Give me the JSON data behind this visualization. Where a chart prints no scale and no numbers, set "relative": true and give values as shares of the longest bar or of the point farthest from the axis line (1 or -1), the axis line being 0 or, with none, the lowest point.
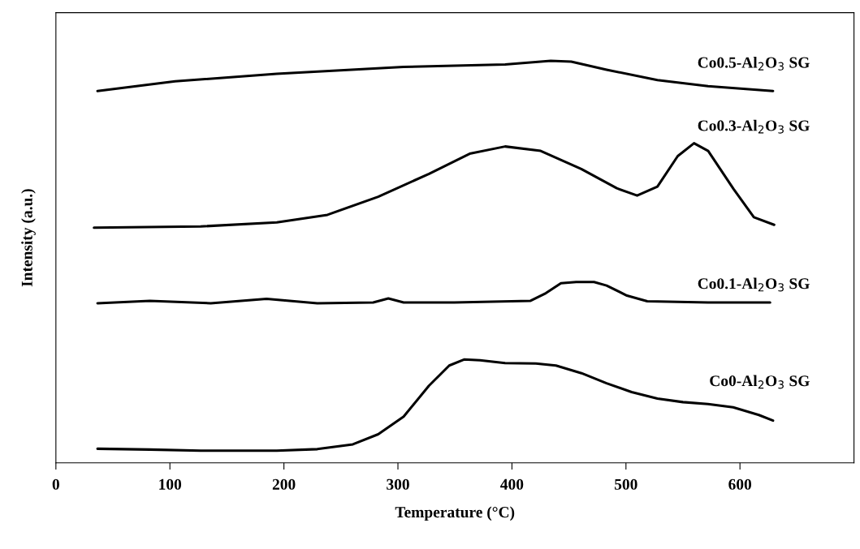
{
  "chart_data": {
    "type": "line",
    "relative": true,
    "xlabel": "Temperature (°C)",
    "ylabel": "Intensity (a.u.)",
    "xlim": [
      0,
      700
    ],
    "xticks": [
      0,
      100,
      200,
      300,
      400,
      500,
      600
    ],
    "grid": false,
    "legend": false,
    "marker": "none",
    "line_style": "solid",
    "series": [
      {
        "name": "Co0.5-Al$_{2}$O$_{3}$ SG",
        "color": "#000000",
        "x": [
          36.5,
          104.6,
          193.7,
          305,
          394,
          434,
          452,
          483,
          527.6,
          572,
          629
        ],
        "values": [
          0.925,
          0.949,
          0.968,
          0.985,
          0.991,
          1.0,
          0.998,
          0.978,
          0.952,
          0.937,
          0.925
        ]
      },
      {
        "name": "Co0.3-Al$_{2}$O$_{3}$ SG",
        "color": "#000000",
        "x": [
          33.4,
          126.9,
          193.7,
          238.2,
          282.7,
          327.3,
          362.9,
          394,
          425.2,
          460.8,
          492,
          509.8,
          527.6,
          545.4,
          559.7,
          572.1,
          594.4,
          612.2,
          630
        ],
        "values": [
          0.585,
          0.588,
          0.598,
          0.617,
          0.662,
          0.719,
          0.769,
          0.787,
          0.776,
          0.731,
          0.683,
          0.665,
          0.687,
          0.763,
          0.795,
          0.776,
          0.681,
          0.611,
          0.592
        ]
      },
      {
        "name": "Co0.1-Al$_{2}$O$_{3}$ SG",
        "color": "#000000",
        "x": [
          36.5,
          82.4,
          135.8,
          184.8,
          229.3,
          278.3,
          291.6,
          305,
          349.5,
          416.3,
          429.7,
          443,
          456.4,
          472,
          483,
          500.9,
          518.7,
          572,
          626.4
        ],
        "values": [
          0.397,
          0.403,
          0.397,
          0.408,
          0.397,
          0.399,
          0.409,
          0.399,
          0.399,
          0.403,
          0.422,
          0.447,
          0.45,
          0.45,
          0.441,
          0.416,
          0.402,
          0.399,
          0.399
        ]
      },
      {
        "name": "Co0-Al$_{2}$O$_{3}$ SG",
        "color": "#000000",
        "x": [
          36.5,
          82.4,
          126.9,
          193.7,
          229.3,
          260.5,
          282.7,
          305,
          327,
          345,
          358,
          372,
          394,
          421,
          438.6,
          461,
          483,
          505,
          527.6,
          550,
          572,
          594,
          616.6,
          629
        ],
        "values": [
          0.035,
          0.033,
          0.03,
          0.03,
          0.034,
          0.046,
          0.071,
          0.115,
          0.191,
          0.242,
          0.257,
          0.255,
          0.248,
          0.247,
          0.242,
          0.223,
          0.198,
          0.176,
          0.16,
          0.151,
          0.146,
          0.138,
          0.119,
          0.105
        ]
      }
    ]
  }
}
